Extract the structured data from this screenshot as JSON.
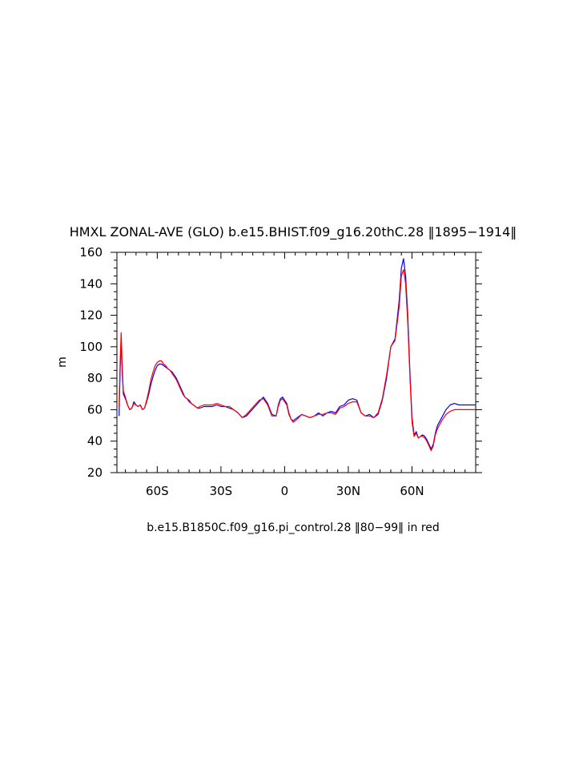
{
  "chart_data": {
    "type": "line",
    "title": "HMXL ZONAL-AVE (GLO) b.e15.BHIST.f09_g16.20thC.28 ‖1895−1914‖",
    "subtitle": "b.e15.B1850C.f09_g16.pi_control.28 ‖80−99‖ in red",
    "xlabel": "",
    "ylabel": "m",
    "xlim": [
      -79,
      90
    ],
    "ylim": [
      20,
      160
    ],
    "x_ticks": [
      {
        "value": -60,
        "label": "60S"
      },
      {
        "value": -30,
        "label": "30S"
      },
      {
        "value": 0,
        "label": "0"
      },
      {
        "value": 30,
        "label": "30N"
      },
      {
        "value": 60,
        "label": "60N"
      }
    ],
    "y_ticks": [
      {
        "value": 20,
        "label": "20"
      },
      {
        "value": 40,
        "label": "40"
      },
      {
        "value": 60,
        "label": "60"
      },
      {
        "value": 80,
        "label": "80"
      },
      {
        "value": 100,
        "label": "100"
      },
      {
        "value": 120,
        "label": "120"
      },
      {
        "value": 140,
        "label": "140"
      },
      {
        "value": 160,
        "label": "160"
      }
    ],
    "grid": false,
    "series": [
      {
        "color": "#0000ff",
        "x": [
          -78,
          -77.5,
          -77,
          -76.5,
          -76,
          -75,
          -74,
          -73,
          -72,
          -71,
          -70,
          -69,
          -68,
          -67,
          -66,
          -65,
          -64,
          -63,
          -62,
          -61,
          -60,
          -59,
          -58,
          -57,
          -56,
          -55,
          -54,
          -53,
          -52,
          -51,
          -50,
          -49,
          -48,
          -47,
          -46,
          -45,
          -44,
          -43,
          -42,
          -41,
          -40,
          -38,
          -36,
          -34,
          -32,
          -30,
          -28,
          -26,
          -24,
          -22,
          -20,
          -18,
          -16,
          -14,
          -12,
          -10,
          -8,
          -6,
          -4,
          -3,
          -2,
          -1,
          0,
          1,
          2,
          3,
          4,
          5,
          6,
          8,
          10,
          12,
          14,
          16,
          18,
          20,
          22,
          24,
          26,
          28,
          30,
          32,
          34,
          36,
          38,
          40,
          42,
          44,
          46,
          48,
          50,
          52,
          54,
          55,
          56,
          57,
          58,
          59,
          60,
          61,
          62,
          63,
          64,
          65,
          66,
          67,
          68,
          69,
          70,
          71,
          72,
          74,
          76,
          78,
          80,
          82,
          84,
          86,
          88,
          90
        ],
        "values": [
          56,
          85,
          104,
          84,
          70,
          67,
          63,
          60,
          61,
          65,
          63,
          62,
          63,
          60,
          61,
          65,
          70,
          76,
          81,
          85,
          88,
          89,
          89,
          88,
          87,
          86,
          85,
          84,
          82,
          80,
          77,
          74,
          71,
          68,
          67,
          66,
          64,
          63,
          62,
          61,
          61,
          62,
          62,
          62,
          63,
          62,
          62,
          61,
          60,
          58,
          55,
          56,
          59,
          62,
          65,
          68,
          64,
          57,
          56,
          63,
          67,
          68,
          66,
          64,
          58,
          54,
          53,
          54,
          55,
          57,
          56,
          55,
          56,
          58,
          56,
          58,
          59,
          58,
          62,
          63,
          66,
          67,
          66,
          58,
          56,
          57,
          55,
          57,
          66,
          80,
          100,
          105,
          130,
          150,
          156,
          145,
          120,
          85,
          55,
          44,
          46,
          42,
          43,
          44,
          43,
          41,
          38,
          35,
          38,
          45,
          50,
          55,
          60,
          63,
          64,
          63,
          63,
          63,
          63,
          63
        ],
        "extra": "blue = b.e15.BHIST.f09_g16.20thC.28"
      },
      {
        "color": "#ff0000",
        "x": [
          -78,
          -77.5,
          -77,
          -76.5,
          -76,
          -75,
          -74,
          -73,
          -72,
          -71,
          -70,
          -69,
          -68,
          -67,
          -66,
          -65,
          -64,
          -63,
          -62,
          -61,
          -60,
          -59,
          -58,
          -57,
          -56,
          -55,
          -54,
          -53,
          -52,
          -51,
          -50,
          -49,
          -48,
          -47,
          -46,
          -45,
          -44,
          -43,
          -42,
          -41,
          -40,
          -38,
          -36,
          -34,
          -32,
          -30,
          -28,
          -26,
          -24,
          -22,
          -20,
          -18,
          -16,
          -14,
          -12,
          -10,
          -8,
          -6,
          -4,
          -3,
          -2,
          -1,
          0,
          1,
          2,
          3,
          4,
          5,
          6,
          8,
          10,
          12,
          14,
          16,
          18,
          20,
          22,
          24,
          26,
          28,
          30,
          32,
          34,
          36,
          38,
          40,
          42,
          44,
          46,
          48,
          50,
          52,
          54,
          55,
          56,
          57,
          58,
          59,
          60,
          61,
          62,
          63,
          64,
          65,
          66,
          67,
          68,
          69,
          70,
          71,
          72,
          74,
          76,
          78,
          80,
          82,
          84,
          86,
          88,
          90
        ],
        "values": [
          62,
          90,
          109,
          88,
          72,
          68,
          63,
          60,
          61,
          64,
          63,
          62,
          63,
          60,
          61,
          66,
          72,
          79,
          84,
          88,
          90,
          91,
          91,
          89,
          88,
          86,
          85,
          83,
          81,
          79,
          76,
          73,
          70,
          68,
          67,
          65,
          64,
          63,
          62,
          61,
          62,
          63,
          63,
          63,
          64,
          63,
          62,
          62,
          60,
          58,
          55,
          57,
          60,
          63,
          66,
          67,
          63,
          56,
          56,
          62,
          66,
          67,
          65,
          63,
          57,
          54,
          52,
          53,
          54,
          57,
          56,
          55,
          56,
          57,
          57,
          58,
          58,
          57,
          61,
          62,
          64,
          65,
          65,
          58,
          56,
          56,
          55,
          58,
          67,
          82,
          100,
          104,
          126,
          145,
          149,
          140,
          115,
          82,
          52,
          43,
          45,
          42,
          43,
          43,
          42,
          40,
          37,
          34,
          37,
          44,
          48,
          53,
          57,
          59,
          60,
          60,
          60,
          60,
          60,
          60
        ],
        "extra": "red = b.e15.B1850C.f09_g16.pi_control.28"
      }
    ]
  }
}
